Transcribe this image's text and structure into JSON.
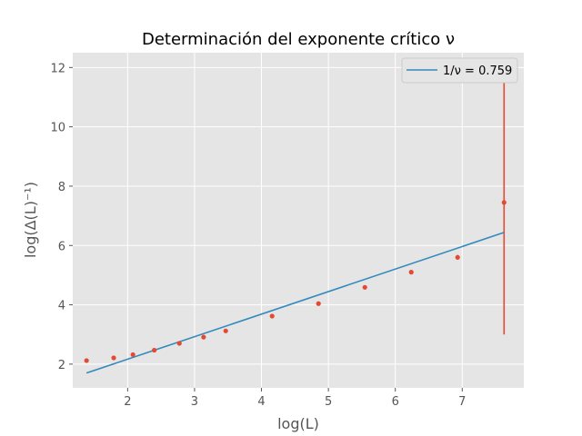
{
  "chart_data": {
    "type": "scatter",
    "title": "Determinación del exponente crítico ν",
    "xlabel": "log(L)",
    "ylabel": "log(Δ(L)⁻¹)",
    "xlim": [
      1.18,
      7.92
    ],
    "ylim": [
      1.2,
      12.5
    ],
    "xticks": [
      2,
      3,
      4,
      5,
      6,
      7
    ],
    "yticks": [
      2,
      4,
      6,
      8,
      10,
      12
    ],
    "grid": true,
    "legend_placement": "top-right",
    "series": [
      {
        "kind": "points",
        "color": "#e24a33",
        "x": [
          1.386,
          1.792,
          2.079,
          2.398,
          2.773,
          3.135,
          3.466,
          4.159,
          4.852,
          5.545,
          6.238,
          6.931,
          7.625
        ],
        "y": [
          2.12,
          2.21,
          2.32,
          2.47,
          2.7,
          2.91,
          3.12,
          3.62,
          4.04,
          4.59,
          5.1,
          5.6,
          7.45
        ],
        "errors": [
          0,
          0,
          0,
          0,
          0,
          0,
          0,
          0,
          0,
          0,
          0,
          0.08,
          4.45
        ]
      },
      {
        "kind": "fit-line",
        "name": "1/ν = 0.759",
        "color": "#348abd",
        "x": [
          1.386,
          7.625
        ],
        "y": [
          1.7,
          6.44
        ]
      }
    ]
  }
}
